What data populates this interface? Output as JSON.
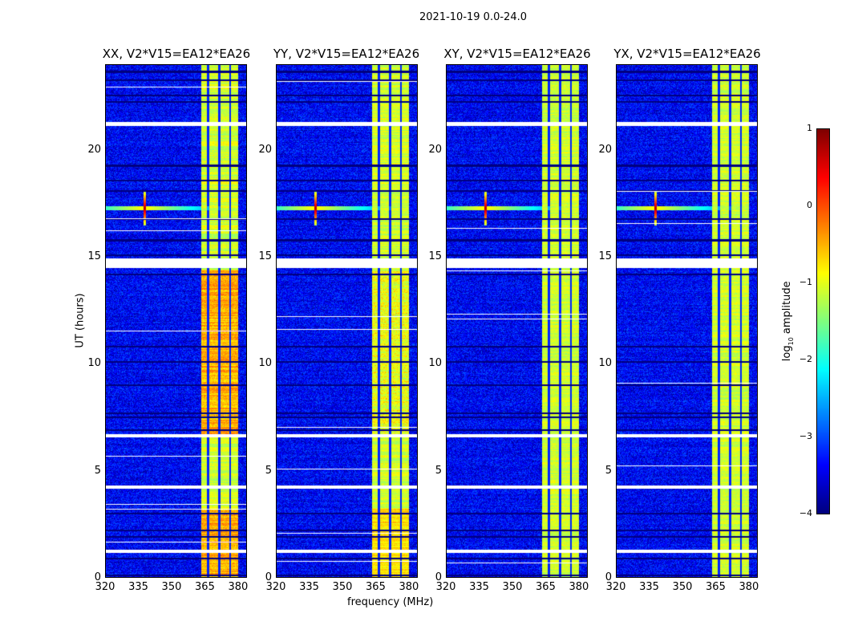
{
  "chart_data": {
    "type": "heatmap",
    "title": "2021-10-19 0.0-24.0",
    "panels": [
      {
        "title": "XX, V2*V15=EA12*EA26",
        "level": 1.0
      },
      {
        "title": "YY, V2*V15=EA12*EA26",
        "level": 0.85
      },
      {
        "title": "XY, V2*V15=EA12*EA26",
        "level": 0.7
      },
      {
        "title": "YX, V2*V15=EA12*EA26",
        "level": 0.7
      }
    ],
    "xlabel": "frequency (MHz)",
    "ylabel": "UT (hours)",
    "xlim": [
      320,
      384
    ],
    "ylim": [
      0,
      24
    ],
    "xticks": [
      "320",
      "335",
      "350",
      "365",
      "380"
    ],
    "xtick_values": [
      320,
      335,
      350,
      365,
      380
    ],
    "yticks": [
      "0",
      "5",
      "10",
      "15",
      "20"
    ],
    "ytick_values": [
      0,
      5,
      10,
      15,
      20
    ],
    "colorbar": {
      "label_prefix": "log",
      "label_sub": "10",
      "label_suffix": " amplitude",
      "clim": [
        -4,
        1
      ],
      "ticks": [
        "1",
        "0",
        "−1",
        "−2",
        "−3",
        "−4"
      ],
      "tick_values": [
        1,
        0,
        -1,
        -2,
        -3,
        -4
      ]
    },
    "features": {
      "background_log_amp": -3.4,
      "band_MHz": [
        363.5,
        380
      ],
      "band_log_amp": -1.1,
      "band_gaps_MHz": [
        366.5,
        371.5,
        376.5
      ],
      "flagged_hours": [
        [
          21.15,
          21.35
        ],
        [
          14.5,
          14.95
        ],
        [
          6.55,
          6.7
        ],
        [
          4.15,
          4.3
        ],
        [
          1.15,
          1.3
        ]
      ],
      "dark_rows_hours": [
        0.1,
        0.9,
        1.9,
        2.2,
        3.0,
        6.9,
        7.5,
        7.7,
        9.0,
        10.1,
        10.8,
        14.2,
        15.1,
        15.8,
        16.8,
        18.1,
        18.6,
        19.3,
        22.3,
        22.6,
        23.3,
        23.7
      ],
      "rfi_spike": {
        "freq_MHz": 337.5,
        "hour": 17.3,
        "log_amp": 0.8
      }
    }
  }
}
